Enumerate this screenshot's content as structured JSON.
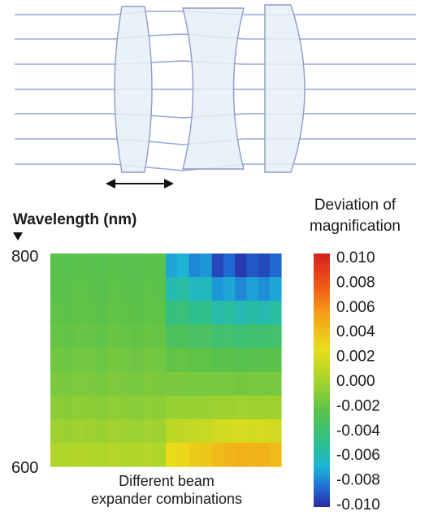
{
  "lens_diagram": {
    "ray_color": "#98a7d6",
    "lens_fill": "#e7eef7",
    "lens_stroke": "#8c9cc9",
    "lens_count": 3,
    "ray_count": 7,
    "movement_arrow": "double-headed horizontal arrow under first lens"
  },
  "chart_data": {
    "type": "heatmap",
    "title": "",
    "ylabel": "Wavelength (nm)",
    "xlabel_lines": [
      "Different beam",
      "expander combinations"
    ],
    "y_ticks": [
      "800",
      "600"
    ],
    "ylim": [
      600,
      800
    ],
    "colorbar": {
      "title_lines": [
        "Deviation of",
        "magnification"
      ],
      "ticks": [
        "0.010",
        "0.008",
        "0.006",
        "0.004",
        "0.002",
        "0.000",
        "-0.002",
        "-0.004",
        "-0.006",
        "-0.008",
        "-0.010"
      ],
      "range": [
        -0.01,
        0.01
      ],
      "colormap": [
        "#2a2aa0",
        "#1f6fd8",
        "#1cb5d6",
        "#2ec08a",
        "#5bc24a",
        "#a8d42c",
        "#e8de1a",
        "#f5a019",
        "#ee5517",
        "#d41f1f"
      ]
    },
    "columns": 20,
    "wavelengths_nm": [
      800,
      775,
      750,
      725,
      700,
      675,
      650,
      625,
      600
    ],
    "values": [
      [
        -0.0012,
        -0.0013,
        -0.0011,
        -0.0012,
        -0.0013,
        -0.0011,
        -0.0012,
        -0.0013,
        -0.0011,
        -0.0012,
        -0.006,
        -0.0055,
        -0.007,
        -0.0065,
        -0.009,
        -0.008,
        -0.0095,
        -0.0085,
        -0.009,
        -0.008
      ],
      [
        -0.0011,
        -0.0012,
        -0.001,
        -0.0011,
        -0.0012,
        -0.001,
        -0.0011,
        -0.0012,
        -0.001,
        -0.0011,
        -0.0045,
        -0.004,
        -0.005,
        -0.0048,
        -0.0065,
        -0.006,
        -0.007,
        -0.0062,
        -0.0068,
        -0.006
      ],
      [
        -0.001,
        -0.0011,
        -0.0009,
        -0.001,
        -0.0011,
        -0.0009,
        -0.001,
        -0.0011,
        -0.0009,
        -0.001,
        -0.003,
        -0.0028,
        -0.0035,
        -0.0033,
        -0.0042,
        -0.004,
        -0.0045,
        -0.0041,
        -0.0044,
        -0.004
      ],
      [
        -0.0008,
        -0.0009,
        -0.0007,
        -0.0008,
        -0.0009,
        -0.0007,
        -0.0008,
        -0.0009,
        -0.0007,
        -0.0008,
        -0.0018,
        -0.0017,
        -0.002,
        -0.0019,
        -0.0024,
        -0.0023,
        -0.0026,
        -0.0024,
        -0.0025,
        -0.0023
      ],
      [
        -0.0005,
        -0.0006,
        -0.0004,
        -0.0005,
        -0.0006,
        -0.0004,
        -0.0005,
        -0.0006,
        -0.0004,
        -0.0005,
        -0.0009,
        -0.0008,
        -0.001,
        -0.001,
        -0.0012,
        -0.0011,
        -0.0013,
        -0.0012,
        -0.0012,
        -0.0011
      ],
      [
        -0.0002,
        -0.0003,
        -0.0001,
        -0.0002,
        -0.0003,
        -0.0001,
        -0.0002,
        -0.0003,
        -0.0001,
        -0.0002,
        -0.0002,
        -0.0002,
        -0.0003,
        -0.0003,
        -0.0003,
        -0.0003,
        -0.0004,
        -0.0003,
        -0.0003,
        -0.0003
      ],
      [
        0.0003,
        0.0002,
        0.0004,
        0.0003,
        0.0002,
        0.0004,
        0.0003,
        0.0002,
        0.0004,
        0.0003,
        0.0006,
        0.0006,
        0.0007,
        0.0007,
        0.0008,
        0.0008,
        0.0009,
        0.0008,
        0.0008,
        0.0008
      ],
      [
        0.0008,
        0.0007,
        0.0009,
        0.0008,
        0.0007,
        0.0009,
        0.0008,
        0.0007,
        0.0009,
        0.0008,
        0.0018,
        0.0019,
        0.0021,
        0.0022,
        0.0025,
        0.0026,
        0.0028,
        0.0026,
        0.0027,
        0.0025
      ],
      [
        0.0014,
        0.0013,
        0.0015,
        0.0014,
        0.0013,
        0.0015,
        0.0014,
        0.0013,
        0.0015,
        0.0014,
        0.0034,
        0.0036,
        0.004,
        0.0042,
        0.0046,
        0.0048,
        0.005,
        0.0048,
        0.0049,
        0.0046
      ]
    ]
  }
}
